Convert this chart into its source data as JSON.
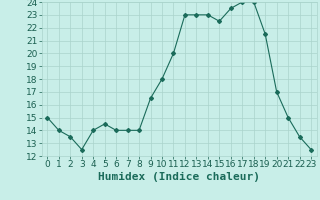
{
  "x": [
    0,
    1,
    2,
    3,
    4,
    5,
    6,
    7,
    8,
    9,
    10,
    11,
    12,
    13,
    14,
    15,
    16,
    17,
    18,
    19,
    20,
    21,
    22,
    23
  ],
  "y": [
    15,
    14,
    13.5,
    12.5,
    14,
    14.5,
    14,
    14,
    14,
    16.5,
    18,
    20,
    23,
    23,
    23,
    22.5,
    23.5,
    24,
    24,
    21.5,
    17,
    15,
    13.5,
    12.5
  ],
  "line_color": "#1a6b5a",
  "marker": "D",
  "marker_size": 2,
  "bg_color": "#c8eee8",
  "grid_color": "#aad4cc",
  "xlabel": "Humidex (Indice chaleur)",
  "ylim": [
    12,
    24
  ],
  "xlim": [
    -0.5,
    23.5
  ],
  "yticks": [
    12,
    13,
    14,
    15,
    16,
    17,
    18,
    19,
    20,
    21,
    22,
    23,
    24
  ],
  "xticks": [
    0,
    1,
    2,
    3,
    4,
    5,
    6,
    7,
    8,
    9,
    10,
    11,
    12,
    13,
    14,
    15,
    16,
    17,
    18,
    19,
    20,
    21,
    22,
    23
  ],
  "xlabel_fontsize": 8,
  "tick_fontsize": 6.5
}
